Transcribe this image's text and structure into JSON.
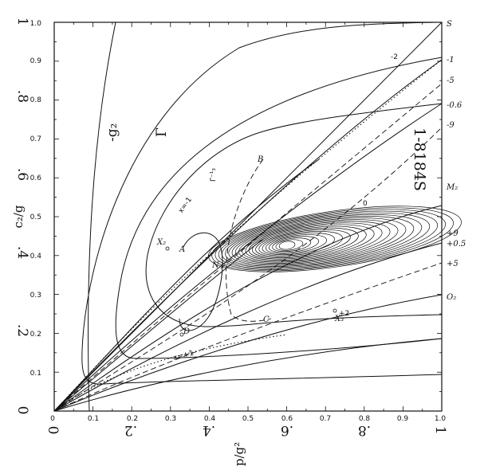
{
  "figure": {
    "x_axis_label": "p/g²",
    "y_axis_label": "c₂/g",
    "x_ticks": [
      "0",
      "0.1",
      "0.2",
      "0.3",
      "0.4",
      "0.5",
      "0.6",
      "0.7",
      "0.8",
      "0.9",
      "1.0"
    ],
    "y_ticks": [
      "0",
      "0.1",
      "0.2",
      "0.3",
      "0.4",
      "0.5",
      "0.6",
      "0.7",
      "0.8",
      "0.9",
      "1.0"
    ],
    "big_x_ticks": [
      "0",
      ".2",
      ".4",
      ".6",
      ".8",
      "1"
    ],
    "big_y_ticks": [
      "0",
      ".2",
      ".4",
      ".6",
      ".8",
      "1"
    ],
    "right_edge_labels": [
      "S",
      "-1",
      "-5",
      "-0.6",
      "-9",
      "M₂",
      "+9",
      "+0.5",
      "+5",
      "O₂"
    ],
    "curve_labels": [
      "-2",
      "0",
      "+2",
      "x=-1",
      "x=+1"
    ],
    "point_labels": [
      "X₂",
      "A",
      "B",
      "C",
      "D",
      "N",
      "X₃"
    ],
    "region_labels": [
      "-g₂",
      "Γ",
      "Γ⁻¹₃"
    ],
    "stamp": "1-8184S"
  }
}
